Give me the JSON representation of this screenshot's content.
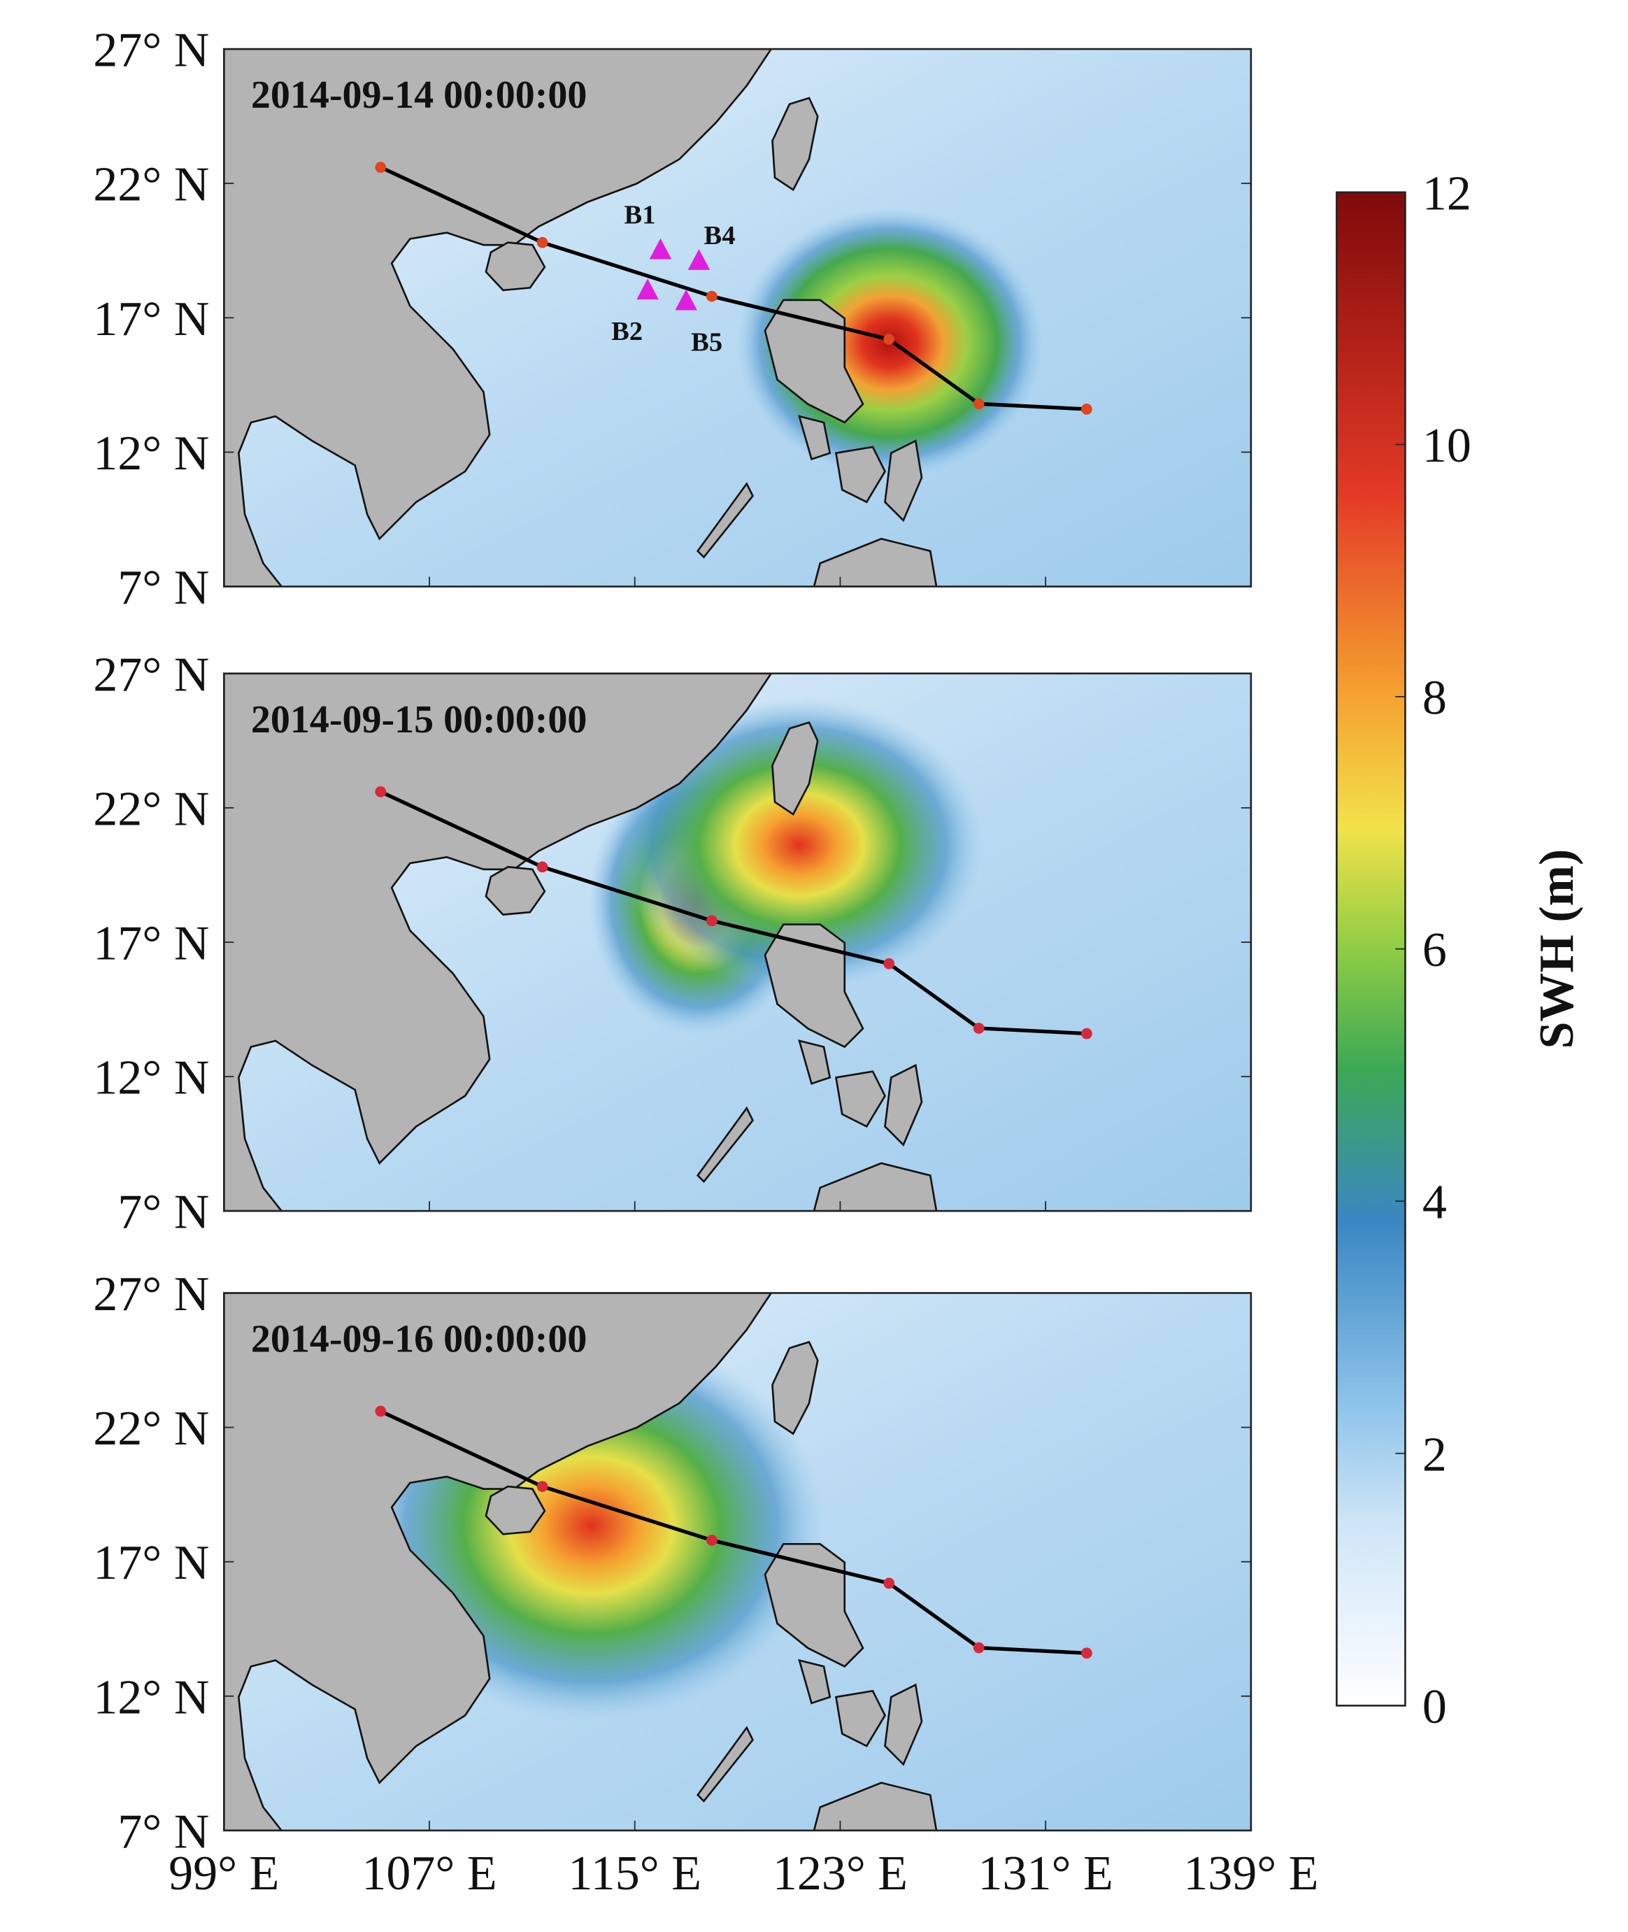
{
  "panels": [
    {
      "title": "2014-09-14 00:00:00"
    },
    {
      "title": "2014-09-15 00:00:00"
    },
    {
      "title": "2014-09-16 00:00:00"
    }
  ],
  "lonlim": [
    99,
    139
  ],
  "latlim": [
    7,
    27
  ],
  "yticks": [
    {
      "value": 27,
      "label": "27° N"
    },
    {
      "value": 22,
      "label": "22° N"
    },
    {
      "value": 17,
      "label": "17° N"
    },
    {
      "value": 12,
      "label": "12° N"
    },
    {
      "value": 7,
      "label": "7° N"
    }
  ],
  "xticks": [
    {
      "value": 99,
      "label": "99° E"
    },
    {
      "value": 107,
      "label": "107° E"
    },
    {
      "value": 115,
      "label": "115° E"
    },
    {
      "value": 123,
      "label": "123° E"
    },
    {
      "value": 131,
      "label": "131° E"
    },
    {
      "value": 139,
      "label": "139° E"
    }
  ],
  "track": {
    "lon": [
      105.1,
      111.4,
      118.0,
      124.9,
      128.4,
      132.6
    ],
    "lat": [
      22.6,
      19.8,
      17.8,
      16.2,
      13.8,
      13.6
    ]
  },
  "buoys": [
    {
      "label": "B1",
      "lon": 116.0,
      "lat": 19.5
    },
    {
      "label": "B4",
      "lon": 117.5,
      "lat": 19.1
    },
    {
      "label": "B2",
      "lon": 115.5,
      "lat": 18.0
    },
    {
      "label": "B5",
      "lon": 117.0,
      "lat": 17.6
    }
  ],
  "colorbar": {
    "label": "SWH (m)",
    "lim": [
      0,
      12
    ],
    "ticks": [
      0,
      2,
      4,
      6,
      8,
      10,
      12
    ]
  }
}
